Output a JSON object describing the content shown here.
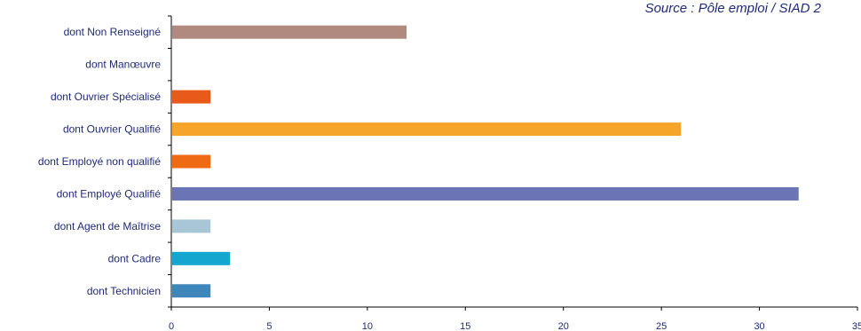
{
  "chart_data": {
    "type": "bar",
    "orientation": "horizontal",
    "source": "Source : Pôle emploi / SIAD 2",
    "categories": [
      "dont Non Renseigné",
      "dont Manœuvre",
      "dont Ouvrier Spécialisé",
      "dont Ouvrier Qualifié",
      "dont Employé non qualifié",
      "dont Employé Qualifié",
      "dont Agent de Maîtrise",
      "dont Cadre",
      "dont Technicien"
    ],
    "values": [
      12,
      0,
      2,
      26,
      2,
      32,
      2,
      3,
      2
    ],
    "colors": [
      "#b08a7e",
      "#b08a7e",
      "#e85a1a",
      "#f5a52a",
      "#ee6a14",
      "#6b74b4",
      "#a9c6d6",
      "#13a6cf",
      "#3f86ba"
    ],
    "xlim": [
      0,
      35
    ],
    "xticks": [
      0,
      5,
      10,
      15,
      20,
      25,
      30,
      35
    ],
    "grid": false,
    "legend": "none"
  }
}
